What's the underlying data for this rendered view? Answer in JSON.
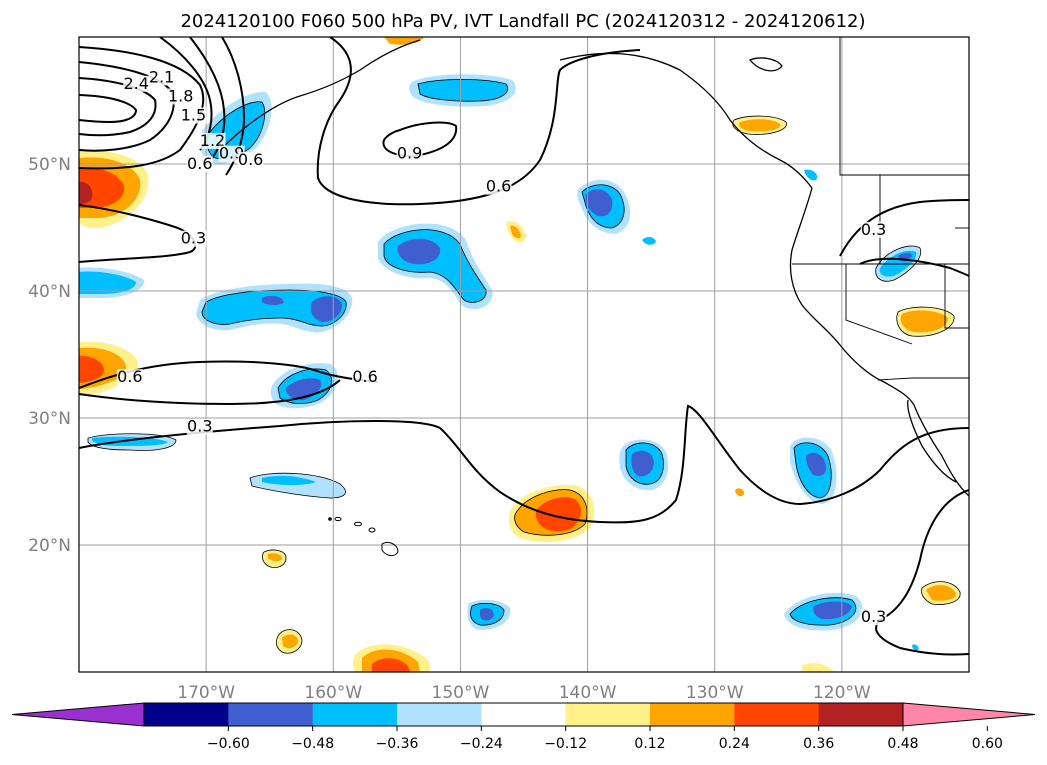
{
  "title": "2024120100 F060 500 hPa PV, IVT Landfall PC (2024120312 - 2024120612)",
  "map": {
    "lon_range": [
      -180,
      -110
    ],
    "lat_range": [
      10,
      60
    ],
    "lon_ticks": [
      {
        "lon": -170,
        "label": "170°W"
      },
      {
        "lon": -160,
        "label": "160°W"
      },
      {
        "lon": -150,
        "label": "150°W"
      },
      {
        "lon": -140,
        "label": "140°W"
      },
      {
        "lon": -130,
        "label": "130°W"
      },
      {
        "lon": -120,
        "label": "120°W"
      }
    ],
    "lat_ticks": [
      {
        "lat": 20,
        "label": "20°N"
      },
      {
        "lat": 30,
        "label": "30°N"
      },
      {
        "lat": 40,
        "label": "40°N"
      },
      {
        "lat": 50,
        "label": "50°N"
      }
    ],
    "grid": true,
    "contour_labels": [
      {
        "text": "2.4",
        "lon": -175.5,
        "lat": 56.0
      },
      {
        "text": "2.1",
        "lon": -173.5,
        "lat": 56.5
      },
      {
        "text": "1.8",
        "lon": -172.0,
        "lat": 55.0
      },
      {
        "text": "1.5",
        "lon": -171.0,
        "lat": 53.5
      },
      {
        "text": "1.2",
        "lon": -169.5,
        "lat": 51.5
      },
      {
        "text": "0.9",
        "lon": -168.0,
        "lat": 50.5
      },
      {
        "text": "0.6",
        "lon": -166.5,
        "lat": 50.0
      },
      {
        "text": "0.6",
        "lon": -170.5,
        "lat": 49.7
      },
      {
        "text": "0.3",
        "lon": -171.0,
        "lat": 43.8
      },
      {
        "text": "0.9",
        "lon": -154.0,
        "lat": 50.5
      },
      {
        "text": "0.6",
        "lon": -147.0,
        "lat": 47.9
      },
      {
        "text": "0.6",
        "lon": -176.0,
        "lat": 32.9
      },
      {
        "text": "0.6",
        "lon": -157.5,
        "lat": 32.9
      },
      {
        "text": "0.3",
        "lon": -170.5,
        "lat": 29.0
      },
      {
        "text": "0.3",
        "lon": -117.5,
        "lat": 44.5
      },
      {
        "text": "0.3",
        "lon": -117.5,
        "lat": 14.0
      }
    ]
  },
  "colorbar": {
    "colors": [
      "#9b30d0",
      "#00008b",
      "#3f5fd0",
      "#00bfff",
      "#b0e2ff",
      "#ffffff",
      "#fff08a",
      "#ffa500",
      "#ff4500",
      "#b22222",
      "#ff86a8"
    ],
    "tick_labels": [
      "−0.60",
      "−0.48",
      "−0.36",
      "−0.24",
      "−0.12",
      "0.12",
      "0.24",
      "0.36",
      "0.48",
      "0.60"
    ]
  }
}
